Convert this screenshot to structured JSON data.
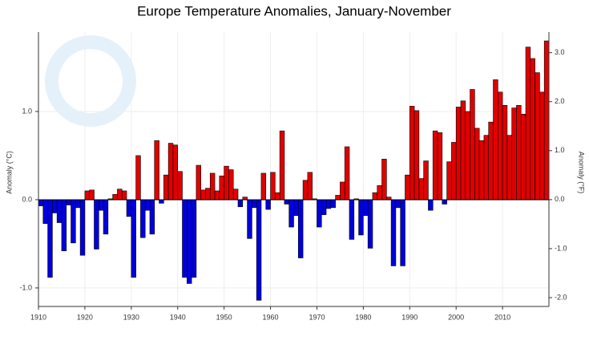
{
  "chart_data": {
    "type": "bar",
    "title": "Europe Temperature Anomalies, January-November",
    "ylabel": "Anomaly (°C)",
    "y2label": "Anomaly (°F)",
    "x": [
      1910,
      1911,
      1912,
      1913,
      1914,
      1915,
      1916,
      1917,
      1918,
      1919,
      1920,
      1921,
      1922,
      1923,
      1924,
      1925,
      1926,
      1927,
      1928,
      1929,
      1930,
      1931,
      1932,
      1933,
      1934,
      1935,
      1936,
      1937,
      1938,
      1939,
      1940,
      1941,
      1942,
      1943,
      1944,
      1945,
      1946,
      1947,
      1948,
      1949,
      1950,
      1951,
      1952,
      1953,
      1954,
      1955,
      1956,
      1957,
      1958,
      1959,
      1960,
      1961,
      1962,
      1963,
      1964,
      1965,
      1966,
      1967,
      1968,
      1969,
      1970,
      1971,
      1972,
      1973,
      1974,
      1975,
      1976,
      1977,
      1978,
      1979,
      1980,
      1981,
      1982,
      1983,
      1984,
      1985,
      1986,
      1987,
      1988,
      1989,
      1990,
      1991,
      1992,
      1993,
      1994,
      1995,
      1996,
      1997,
      1998,
      1999,
      2000,
      2001,
      2002,
      2003,
      2004,
      2005,
      2006,
      2007,
      2008,
      2009,
      2010,
      2011,
      2012,
      2013,
      2014,
      2015,
      2016,
      2017,
      2018,
      2019
    ],
    "values": [
      -0.07,
      -0.27,
      -0.88,
      -0.15,
      -0.26,
      -0.58,
      -0.06,
      -0.49,
      -0.09,
      -0.63,
      0.1,
      0.11,
      -0.56,
      -0.12,
      -0.39,
      0.01,
      0.06,
      0.12,
      0.1,
      -0.19,
      -0.88,
      0.5,
      -0.43,
      -0.12,
      -0.39,
      0.67,
      -0.04,
      0.28,
      0.64,
      0.62,
      0.32,
      -0.88,
      -0.95,
      -0.88,
      0.39,
      0.11,
      0.13,
      0.3,
      0.1,
      0.27,
      0.38,
      0.34,
      0.12,
      -0.08,
      0.03,
      -0.44,
      -0.09,
      -1.14,
      0.3,
      -0.11,
      0.31,
      0.08,
      0.78,
      -0.05,
      -0.31,
      -0.18,
      -0.66,
      0.22,
      0.31,
      0.01,
      -0.31,
      -0.17,
      -0.1,
      -0.09,
      0.05,
      0.2,
      0.6,
      -0.45,
      0.01,
      -0.4,
      -0.18,
      -0.55,
      0.08,
      0.16,
      0.46,
      0.03,
      -0.75,
      -0.09,
      -0.75,
      0.28,
      1.06,
      1.01,
      0.24,
      0.44,
      -0.12,
      0.78,
      0.76,
      -0.05,
      0.43,
      0.65,
      1.05,
      1.12,
      1.0,
      1.25,
      0.81,
      0.67,
      0.73,
      0.88,
      1.36,
      1.22,
      1.07,
      0.73,
      1.04,
      1.07,
      0.97,
      1.73,
      1.6,
      1.44,
      1.22,
      1.8
    ],
    "positive_color": "#e00000",
    "negative_color": "#0000dd",
    "xlim": [
      1910,
      2020
    ],
    "xticks": [
      1910,
      1920,
      1930,
      1940,
      1950,
      1960,
      1970,
      1980,
      1990,
      2000,
      2010
    ],
    "ylim": [
      -1.21,
      1.9
    ],
    "yticks": [
      {
        "value": -1,
        "label": "-1.0"
      },
      {
        "value": 0,
        "label": "0.0"
      },
      {
        "value": 1,
        "label": "1.0"
      }
    ],
    "y2lim": [
      -2.18,
      3.42
    ],
    "y2ticks": [
      {
        "value": -2,
        "label": "-2.0"
      },
      {
        "value": -1,
        "label": "-1.0"
      },
      {
        "value": 0,
        "label": "0.0"
      },
      {
        "value": 1,
        "label": "1.0"
      },
      {
        "value": 2,
        "label": "2.0"
      },
      {
        "value": 3,
        "label": "3.0"
      }
    ],
    "grid": true
  }
}
